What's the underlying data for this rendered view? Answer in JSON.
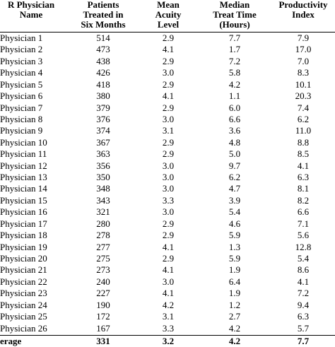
{
  "table": {
    "headers": [
      "R Physician\nName",
      "Patients\nTreated in\nSix Months",
      "Mean\nAcuity\nLevel",
      "Median\nTreat Time\n(Hours)",
      "Productivity\nIndex"
    ],
    "rows": [
      [
        "Physician 1",
        "514",
        "2.9",
        "7.7",
        "7.9"
      ],
      [
        "Physician 2",
        "473",
        "4.1",
        "1.7",
        "17.0"
      ],
      [
        "Physician 3",
        "438",
        "2.9",
        "7.2",
        "7.0"
      ],
      [
        "Physician 4",
        "426",
        "3.0",
        "5.8",
        "8.3"
      ],
      [
        "Physician 5",
        "418",
        "2.9",
        "4.2",
        "10.1"
      ],
      [
        "Physician 6",
        "380",
        "4.1",
        "1.1",
        "20.3"
      ],
      [
        "Physician 7",
        "379",
        "2.9",
        "6.0",
        "7.4"
      ],
      [
        "Physician 8",
        "376",
        "3.0",
        "6.6",
        "6.2"
      ],
      [
        "Physician 9",
        "374",
        "3.1",
        "3.6",
        "11.0"
      ],
      [
        "Physician 10",
        "367",
        "2.9",
        "4.8",
        "8.8"
      ],
      [
        "Physician 11",
        "363",
        "2.9",
        "5.0",
        "8.5"
      ],
      [
        "Physician 12",
        "356",
        "3.0",
        "9.7",
        "4.1"
      ],
      [
        "Physician 13",
        "350",
        "3.0",
        "6.2",
        "6.3"
      ],
      [
        "Physician 14",
        "348",
        "3.0",
        "4.7",
        "8.1"
      ],
      [
        "Physician 15",
        "343",
        "3.3",
        "3.9",
        "8.2"
      ],
      [
        "Physician 16",
        "321",
        "3.0",
        "5.4",
        "6.6"
      ],
      [
        "Physician 17",
        "280",
        "2.9",
        "4.6",
        "7.1"
      ],
      [
        "Physician 18",
        "278",
        "2.9",
        "5.9",
        "5.6"
      ],
      [
        "Physician 19",
        "277",
        "4.1",
        "1.3",
        "12.8"
      ],
      [
        "Physician 20",
        "275",
        "2.9",
        "5.9",
        "5.4"
      ],
      [
        "Physician 21",
        "273",
        "4.1",
        "1.9",
        "8.6"
      ],
      [
        "Physician 22",
        "240",
        "3.0",
        "6.4",
        "4.1"
      ],
      [
        "Physician 23",
        "227",
        "4.1",
        "1.9",
        "7.2"
      ],
      [
        "Physician 24",
        "190",
        "4.2",
        "1.2",
        "9.4"
      ],
      [
        "Physician 25",
        "172",
        "3.1",
        "2.7",
        "6.3"
      ],
      [
        "Physician 26",
        "167",
        "3.3",
        "4.2",
        "5.7"
      ]
    ],
    "average": [
      "erage",
      "331",
      "3.2",
      "4.2",
      "7.7"
    ]
  }
}
